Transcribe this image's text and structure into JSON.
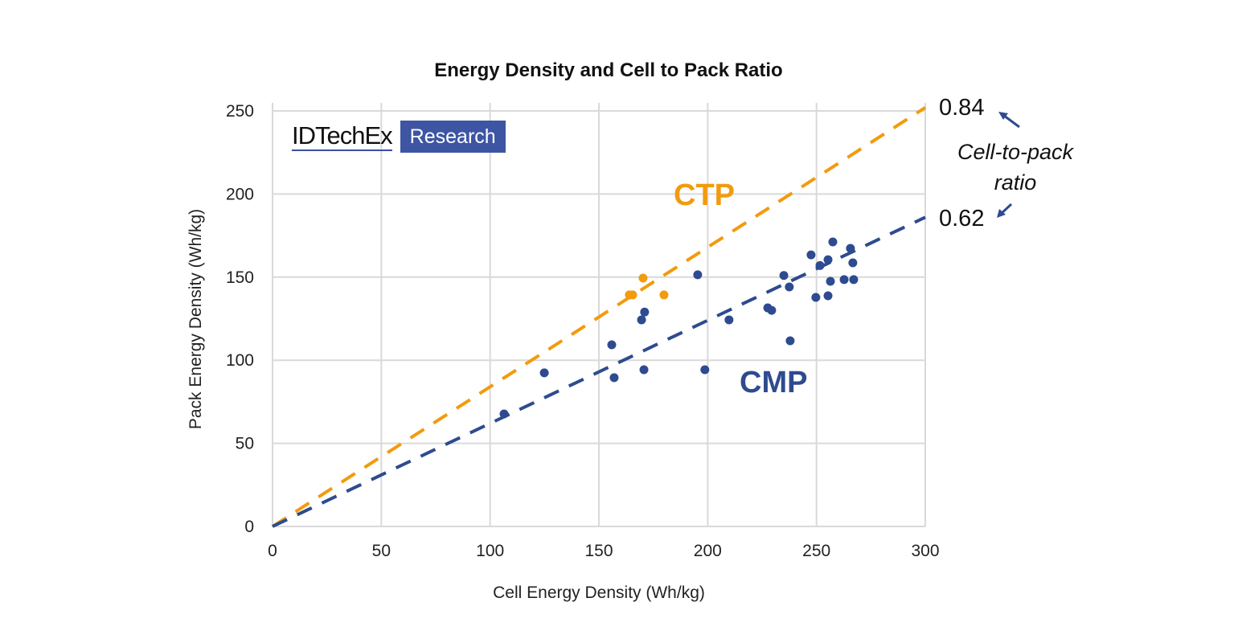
{
  "chart_data": {
    "type": "scatter",
    "title": "Energy Density and Cell to Pack Ratio",
    "xlabel": "Cell Energy Density (Wh/kg)",
    "ylabel": "Pack Energy Density (Wh/kg)",
    "xlim": [
      0,
      300
    ],
    "ylim": [
      0,
      250
    ],
    "xticks": [
      "0",
      "50",
      "100",
      "150",
      "200",
      "250",
      "300"
    ],
    "yticks": [
      "0",
      "50",
      "100",
      "150",
      "200",
      "250"
    ],
    "grid": true,
    "series": [
      {
        "name": "CTP",
        "color": "#F29B0E",
        "points": [
          [
            164,
            139.3
          ],
          [
            165.5,
            139.3
          ],
          [
            170.3,
            149.4
          ],
          [
            179.9,
            139.3
          ]
        ],
        "trendline_slope": 0.84
      },
      {
        "name": "CMP",
        "color": "#2E4B8F",
        "points": [
          [
            106.4,
            67.7
          ],
          [
            124.9,
            92.4
          ],
          [
            155.9,
            109.3
          ],
          [
            157,
            89.5
          ],
          [
            171,
            129
          ],
          [
            169.6,
            124.3
          ],
          [
            170.7,
            94.3
          ],
          [
            195.4,
            151.4
          ],
          [
            209.8,
            124.3
          ],
          [
            198.7,
            94.3
          ],
          [
            247.5,
            163.4
          ],
          [
            257.5,
            171.2
          ],
          [
            265.6,
            167.3
          ],
          [
            266.7,
            158.6
          ],
          [
            255.3,
            160.5
          ],
          [
            251.6,
            157
          ],
          [
            235,
            151
          ],
          [
            256.4,
            147.5
          ],
          [
            262.7,
            148.5
          ],
          [
            267.1,
            148.5
          ],
          [
            237.5,
            144.1
          ],
          [
            249.7,
            137.8
          ],
          [
            255.3,
            138.8
          ],
          [
            227.6,
            131.5
          ],
          [
            229.4,
            130
          ],
          [
            237.9,
            111.7
          ]
        ],
        "trendline_slope": 0.62
      }
    ],
    "annotations": {
      "ratio_high": "0.84",
      "ratio_low": "0.62",
      "ratio_label_line1": "Cell-to-pack",
      "ratio_label_line2": "ratio"
    }
  },
  "logo": {
    "brand": "IDTechEx",
    "suffix": "Research"
  }
}
